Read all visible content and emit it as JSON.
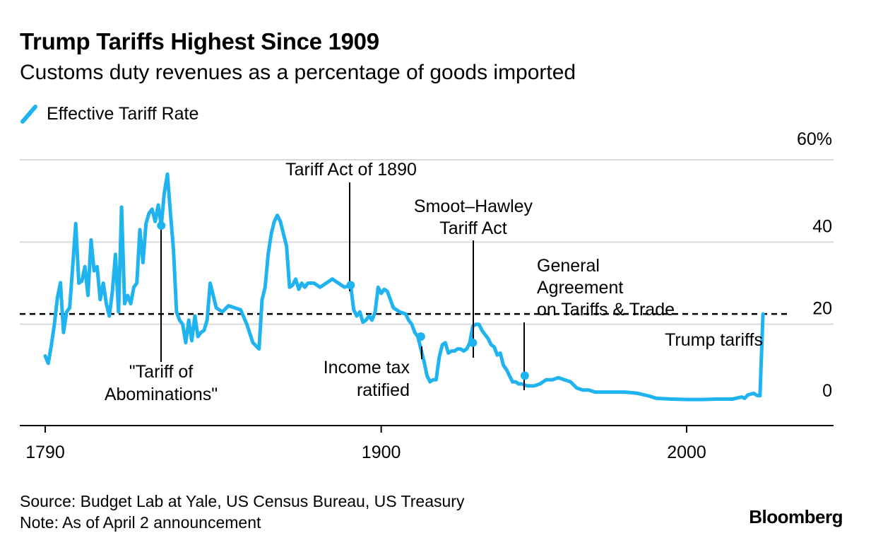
{
  "title": "Trump Tariffs Highest Since 1909",
  "subtitle": "Customs duty revenues as a percentage of goods imported",
  "legend": {
    "label": "Effective Tariff Rate",
    "color": "#1fb3f0"
  },
  "source": "Source: Budget Lab at Yale, US Census Bureau, US Treasury",
  "note": "Note: As of April 2 announcement",
  "brand": "Bloomberg",
  "chart_data": {
    "type": "line",
    "title": "Trump Tariffs Highest Since 1909",
    "xlabel": "",
    "ylabel": "",
    "xlim": [
      1782,
      2036
    ],
    "ylim": [
      0,
      60
    ],
    "x_ticks": [
      1790,
      1900,
      2000
    ],
    "x_tick_labels": [
      "1790",
      "1900",
      "2000"
    ],
    "y_ticks": [
      0,
      20,
      40,
      60
    ],
    "y_tick_labels": [
      "0",
      "20",
      "40",
      "60%"
    ],
    "grid": "horizontal",
    "legend_position": "top-left",
    "reference_line": {
      "value": 22.5,
      "style": "dashed"
    },
    "series": [
      {
        "name": "Effective Tariff Rate",
        "color": "#1fb3f0",
        "x": [
          1790,
          1791,
          1792,
          1793,
          1794,
          1795,
          1796,
          1797,
          1798,
          1799,
          1800,
          1801,
          1802,
          1803,
          1804,
          1805,
          1806,
          1807,
          1808,
          1809,
          1810,
          1811,
          1812,
          1813,
          1814,
          1815,
          1816,
          1817,
          1818,
          1819,
          1820,
          1821,
          1822,
          1823,
          1824,
          1825,
          1826,
          1827,
          1828,
          1829,
          1830,
          1831,
          1832,
          1833,
          1834,
          1835,
          1836,
          1837,
          1838,
          1839,
          1840,
          1841,
          1842,
          1843,
          1844,
          1845,
          1846,
          1848,
          1850,
          1852,
          1854,
          1856,
          1858,
          1860,
          1861,
          1862,
          1863,
          1864,
          1865,
          1866,
          1867,
          1868,
          1869,
          1870,
          1871,
          1872,
          1873,
          1874,
          1875,
          1876,
          1878,
          1880,
          1882,
          1884,
          1886,
          1888,
          1890,
          1891,
          1892,
          1893,
          1894,
          1895,
          1896,
          1897,
          1898,
          1899,
          1900,
          1901,
          1902,
          1904,
          1906,
          1908,
          1909,
          1910,
          1911,
          1912,
          1913,
          1914,
          1915,
          1916,
          1917,
          1918,
          1919,
          1920,
          1921,
          1922,
          1923,
          1924,
          1925,
          1926,
          1927,
          1928,
          1929,
          1930,
          1931,
          1932,
          1933,
          1934,
          1935,
          1936,
          1937,
          1938,
          1939,
          1940,
          1941,
          1942,
          1943,
          1944,
          1945,
          1946,
          1947,
          1948,
          1950,
          1952,
          1954,
          1956,
          1958,
          1960,
          1962,
          1964,
          1966,
          1968,
          1970,
          1972,
          1974,
          1976,
          1978,
          1980,
          1984,
          1988,
          1990,
          1995,
          2000,
          2005,
          2010,
          2015,
          2018,
          2019,
          2020,
          2021,
          2022,
          2023,
          2024,
          2025
        ],
        "y": [
          12.3,
          10.5,
          14.8,
          20.0,
          26.5,
          30.1,
          18.0,
          23.0,
          24.0,
          34.0,
          44.5,
          30.0,
          30.5,
          34.0,
          27.0,
          40.5,
          33.0,
          34.0,
          26.0,
          30.0,
          25.0,
          22.0,
          28.0,
          37.0,
          23.0,
          48.5,
          25.0,
          27.0,
          25.0,
          29.0,
          30.0,
          43.0,
          35.0,
          44.5,
          47.0,
          48.0,
          45.0,
          49.0,
          44.0,
          52.0,
          56.5,
          47.0,
          38.0,
          23.0,
          21.0,
          20.0,
          15.5,
          21.0,
          16.0,
          22.0,
          17.0,
          18.0,
          18.5,
          21.0,
          30.0,
          27.0,
          24.0,
          23.0,
          24.5,
          24.0,
          23.5,
          20.0,
          15.5,
          14.0,
          26.0,
          29.0,
          37.0,
          42.0,
          45.0,
          46.5,
          45.0,
          42.0,
          39.0,
          29.0,
          29.5,
          31.0,
          28.5,
          30.0,
          29.0,
          30.0,
          30.0,
          29.0,
          30.0,
          31.0,
          30.0,
          29.0,
          29.5,
          23.5,
          22.0,
          23.0,
          20.5,
          21.0,
          22.0,
          21.0,
          23.0,
          29.0,
          27.5,
          28.5,
          28.0,
          24.0,
          23.0,
          22.5,
          21.0,
          20.0,
          18.0,
          17.0,
          14.0,
          11.0,
          7.5,
          6.0,
          6.5,
          6.5,
          12.0,
          15.0,
          15.5,
          13.0,
          13.5,
          13.5,
          14.0,
          14.0,
          13.5,
          14.0,
          15.5,
          19.5,
          20.0,
          20.0,
          18.5,
          17.5,
          16.5,
          15.0,
          14.5,
          12.5,
          13.0,
          10.0,
          9.0,
          7.5,
          6.0,
          6.0,
          5.5,
          5.5,
          5.2,
          5.0,
          5.0,
          5.5,
          6.5,
          6.5,
          7.0,
          6.5,
          6.0,
          4.5,
          4.0,
          4.0,
          3.5,
          3.5,
          3.5,
          3.5,
          3.5,
          3.5,
          3.2,
          2.5,
          2.0,
          1.8,
          1.7,
          1.7,
          1.8,
          1.8,
          2.3,
          2.0,
          2.8,
          3.0,
          3.2,
          2.7,
          2.6,
          22.5
        ]
      }
    ],
    "annotations": [
      {
        "label": "\"Tariff of Abominations\"",
        "x": 1828,
        "y": 44
      },
      {
        "label": "Tariff Act of 1890",
        "x": 1890,
        "y": 29.5
      },
      {
        "label": "Income tax ratified",
        "x": 1913,
        "y": 17
      },
      {
        "label": "Smoot–Hawley Tariff Act",
        "x": 1930,
        "y": 15.5
      },
      {
        "label": "General Agreement on Tariffs & Trade",
        "x": 1947,
        "y": 7.5
      },
      {
        "label": "Trump tariffs",
        "x": 2025,
        "y": 22.5
      }
    ]
  }
}
